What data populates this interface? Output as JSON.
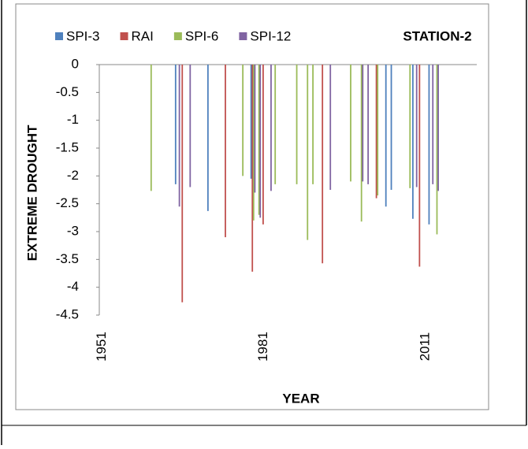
{
  "chart_data": {
    "type": "bar",
    "title": "STATION-2",
    "x_label": "YEAR",
    "y_label": "EXTREME DROUGHT",
    "x": [
      1960,
      1965,
      1966,
      1967,
      1971,
      1974,
      1977,
      1979,
      1980,
      1981,
      1982,
      1983,
      1987,
      1989,
      1990,
      1992,
      1993,
      1997,
      1999,
      2000,
      2002,
      2004,
      2005,
      2008,
      2009,
      2010,
      2012,
      2013
    ],
    "series": [
      {
        "name": "SPI-3",
        "color": "#4f81bd",
        "values": [
          null,
          -2.15,
          null,
          null,
          -2.63,
          null,
          null,
          -2.05,
          null,
          null,
          null,
          null,
          null,
          null,
          null,
          null,
          null,
          null,
          null,
          null,
          null,
          -2.55,
          -2.25,
          null,
          -2.77,
          null,
          -2.87,
          null
        ]
      },
      {
        "name": "RAI",
        "color": "#c0504d",
        "values": [
          null,
          null,
          -4.27,
          null,
          null,
          -3.1,
          null,
          -3.72,
          null,
          -2.87,
          null,
          null,
          null,
          null,
          null,
          -3.57,
          null,
          null,
          null,
          null,
          -2.4,
          null,
          null,
          null,
          null,
          -3.63,
          null,
          null
        ]
      },
      {
        "name": "SPI-6",
        "color": "#9bbb59",
        "values": [
          -2.27,
          null,
          null,
          null,
          null,
          null,
          -2.0,
          -2.8,
          -2.7,
          null,
          null,
          -2.15,
          -2.15,
          -3.15,
          -2.15,
          null,
          null,
          -2.1,
          -2.82,
          null,
          -2.35,
          null,
          null,
          -2.22,
          null,
          null,
          null,
          -3.05
        ]
      },
      {
        "name": "SPI-12",
        "color": "#8064a2",
        "values": [
          null,
          -2.55,
          null,
          -2.2,
          null,
          null,
          null,
          -2.3,
          -2.75,
          null,
          -2.27,
          null,
          null,
          null,
          null,
          null,
          -2.25,
          null,
          -2.1,
          -2.15,
          null,
          null,
          null,
          null,
          -2.2,
          null,
          -2.15,
          -2.27
        ]
      }
    ],
    "xlim": [
      1950.5,
      2020.5
    ],
    "xticks": [
      1951,
      1981,
      2011
    ],
    "ylim": [
      -4.5,
      0
    ],
    "yticks": [
      0,
      -0.5,
      -1,
      -1.5,
      -2,
      -2.5,
      -3,
      -3.5,
      -4,
      -4.5
    ],
    "grid": false,
    "legend": "top"
  }
}
